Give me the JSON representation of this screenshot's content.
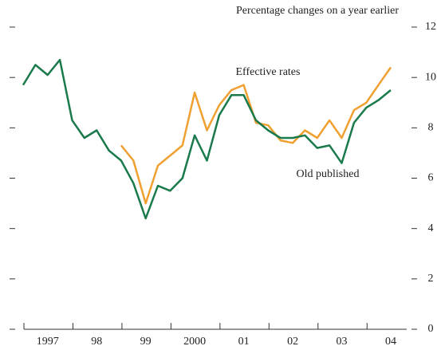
{
  "chart_data": {
    "type": "line",
    "subtitle": "Percentage changes on a year earlier",
    "categories": [
      null,
      null,
      "1997",
      null,
      null,
      null,
      "98",
      null,
      null,
      null,
      "99",
      null,
      null,
      null,
      "2000",
      null,
      null,
      null,
      "01",
      null,
      null,
      null,
      "02",
      null,
      null,
      null,
      "03",
      null,
      null,
      null,
      "04"
    ],
    "series": [
      {
        "name": "Old published",
        "color": "#1a7a4c",
        "values": [
          9.7,
          10.5,
          10.1,
          10.7,
          8.3,
          7.6,
          7.9,
          7.1,
          6.7,
          5.8,
          4.4,
          5.7,
          5.5,
          6.0,
          7.7,
          6.7,
          8.5,
          9.3,
          9.3,
          8.3,
          7.9,
          7.6,
          7.6,
          7.7,
          7.2,
          7.3,
          6.6,
          8.2,
          8.8,
          9.1,
          9.5
        ]
      },
      {
        "name": "Effective rates",
        "color": "#f0a030",
        "values": [
          null,
          null,
          null,
          null,
          null,
          null,
          null,
          null,
          7.3,
          6.7,
          5.0,
          6.5,
          6.9,
          7.3,
          9.4,
          7.9,
          8.9,
          9.5,
          9.7,
          8.2,
          8.1,
          7.5,
          7.4,
          7.9,
          7.6,
          8.3,
          7.6,
          8.7,
          9.0,
          9.7,
          10.4
        ]
      }
    ],
    "ylim": [
      0,
      12
    ],
    "yticks": [
      0,
      2,
      4,
      6,
      8,
      10,
      12
    ],
    "grid": false
  }
}
